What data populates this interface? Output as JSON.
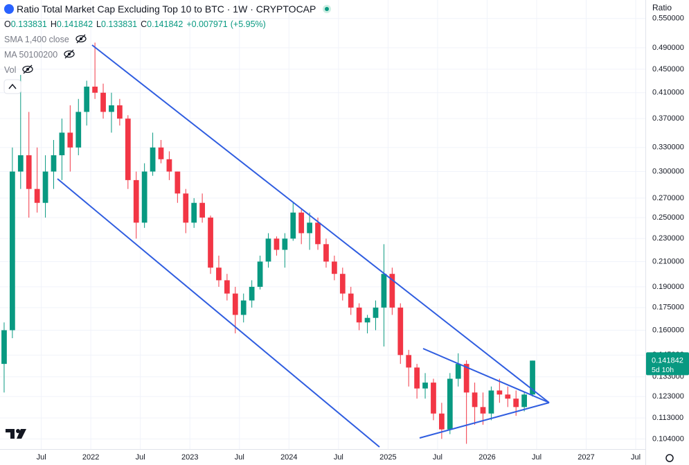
{
  "header": {
    "title": "Ratio Total Market Cap Excluding Top 10 to BTC · 1W · CRYPTOCAP",
    "ohlc": [
      {
        "label": "O",
        "value": "0.133831"
      },
      {
        "label": "H",
        "value": "0.141842"
      },
      {
        "label": "L",
        "value": "0.133831"
      },
      {
        "label": "C",
        "value": "0.141842"
      }
    ],
    "change": "+0.007971",
    "change_pct": "(+5.95%)",
    "indicators": [
      "SMA 1,400 close",
      "MA 50100200",
      "Vol"
    ]
  },
  "axis_header": "Ratio",
  "price_tag": {
    "value": 0.141842,
    "label": "0.141842",
    "countdown": "5d 10h"
  },
  "chart_data": {
    "type": "candlestick",
    "log_scale": true,
    "grid": true,
    "up_color": "#089981",
    "down_color": "#f23645",
    "x": [
      "2021-02",
      "2021-03",
      "2021-04",
      "2021-05",
      "2021-06",
      "2021-07",
      "2021-08",
      "2021-09",
      "2021-10",
      "2021-11",
      "2021-12",
      "2022-01",
      "2022-02",
      "2022-03",
      "2022-04",
      "2022-05",
      "2022-06",
      "2022-07",
      "2022-08",
      "2022-09",
      "2022-10",
      "2022-11",
      "2022-12",
      "2023-01",
      "2023-02",
      "2023-03",
      "2023-04",
      "2023-05",
      "2023-06",
      "2023-07",
      "2023-08",
      "2023-09",
      "2023-10",
      "2023-11",
      "2023-12",
      "2024-01",
      "2024-02",
      "2024-03",
      "2024-04",
      "2024-05",
      "2024-06",
      "2024-07",
      "2024-08",
      "2024-09",
      "2024-10",
      "2024-11",
      "2024-12",
      "2025-01",
      "2025-02",
      "2025-03",
      "2025-04",
      "2025-05",
      "2025-06",
      "2025-07",
      "2025-08",
      "2025-09",
      "2025-10",
      "2025-11",
      "2025-12",
      "2026-01",
      "2026-02",
      "2026-03",
      "2026-04",
      "2026-05",
      "2026-06"
    ],
    "open": [
      0.14,
      0.16,
      0.3,
      0.32,
      0.28,
      0.265,
      0.3,
      0.32,
      0.35,
      0.33,
      0.38,
      0.42,
      0.41,
      0.38,
      0.39,
      0.37,
      0.29,
      0.245,
      0.3,
      0.33,
      0.315,
      0.3,
      0.275,
      0.245,
      0.265,
      0.25,
      0.205,
      0.195,
      0.185,
      0.17,
      0.18,
      0.19,
      0.21,
      0.23,
      0.22,
      0.23,
      0.255,
      0.235,
      0.245,
      0.225,
      0.21,
      0.2,
      0.185,
      0.175,
      0.165,
      0.168,
      0.175,
      0.2,
      0.175,
      0.145,
      0.138,
      0.127,
      0.13,
      0.115,
      0.108,
      0.132,
      0.14,
      0.125,
      0.118,
      0.115,
      0.126,
      0.124,
      0.122,
      0.118,
      0.124
    ],
    "high": [
      0.165,
      0.33,
      0.44,
      0.38,
      0.33,
      0.32,
      0.34,
      0.37,
      0.39,
      0.4,
      0.43,
      0.5,
      0.425,
      0.41,
      0.4,
      0.375,
      0.3,
      0.31,
      0.35,
      0.34,
      0.325,
      0.3,
      0.28,
      0.27,
      0.275,
      0.252,
      0.215,
      0.2,
      0.19,
      0.185,
      0.195,
      0.215,
      0.235,
      0.232,
      0.235,
      0.265,
      0.258,
      0.255,
      0.25,
      0.23,
      0.215,
      0.205,
      0.19,
      0.178,
      0.17,
      0.18,
      0.225,
      0.205,
      0.178,
      0.148,
      0.14,
      0.135,
      0.132,
      0.12,
      0.135,
      0.146,
      0.142,
      0.13,
      0.125,
      0.128,
      0.132,
      0.128,
      0.126,
      0.125,
      0.141842
    ],
    "low": [
      0.125,
      0.155,
      0.28,
      0.25,
      0.255,
      0.25,
      0.28,
      0.29,
      0.3,
      0.32,
      0.36,
      0.4,
      0.37,
      0.35,
      0.36,
      0.28,
      0.23,
      0.24,
      0.295,
      0.31,
      0.29,
      0.265,
      0.235,
      0.24,
      0.245,
      0.2,
      0.19,
      0.18,
      0.158,
      0.165,
      0.175,
      0.188,
      0.205,
      0.215,
      0.205,
      0.228,
      0.225,
      0.22,
      0.22,
      0.205,
      0.195,
      0.18,
      0.17,
      0.16,
      0.158,
      0.16,
      0.15,
      0.17,
      0.14,
      0.128,
      0.122,
      0.122,
      0.112,
      0.104,
      0.106,
      0.128,
      0.102,
      0.11,
      0.11,
      0.112,
      0.12,
      0.118,
      0.114,
      0.116,
      0.123
    ],
    "close": [
      0.16,
      0.3,
      0.32,
      0.28,
      0.265,
      0.3,
      0.32,
      0.35,
      0.33,
      0.38,
      0.42,
      0.41,
      0.38,
      0.39,
      0.37,
      0.29,
      0.245,
      0.3,
      0.33,
      0.315,
      0.3,
      0.275,
      0.245,
      0.265,
      0.25,
      0.205,
      0.195,
      0.185,
      0.17,
      0.18,
      0.19,
      0.21,
      0.23,
      0.22,
      0.23,
      0.255,
      0.235,
      0.245,
      0.225,
      0.21,
      0.2,
      0.185,
      0.175,
      0.165,
      0.168,
      0.175,
      0.2,
      0.175,
      0.145,
      0.138,
      0.127,
      0.13,
      0.115,
      0.108,
      0.132,
      0.14,
      0.125,
      0.118,
      0.115,
      0.126,
      0.124,
      0.122,
      0.118,
      0.124,
      0.141842
    ],
    "xlim": [
      "2021-02",
      "2027-08"
    ],
    "ylim": [
      0.098,
      0.592
    ],
    "xticks": [
      {
        "value": "2021-07",
        "label": "Jul"
      },
      {
        "value": "2022-01",
        "label": "2022"
      },
      {
        "value": "2022-07",
        "label": "Jul"
      },
      {
        "value": "2023-01",
        "label": "2023"
      },
      {
        "value": "2023-07",
        "label": "Jul"
      },
      {
        "value": "2024-01",
        "label": "2024"
      },
      {
        "value": "2024-07",
        "label": "Jul"
      },
      {
        "value": "2025-01",
        "label": "2025"
      },
      {
        "value": "2025-07",
        "label": "Jul"
      },
      {
        "value": "2026-01",
        "label": "2026"
      },
      {
        "value": "2026-07",
        "label": "Jul"
      },
      {
        "value": "2027-01",
        "label": "2027"
      },
      {
        "value": "2027-07",
        "label": "Jul"
      }
    ],
    "yticks": [
      {
        "value": 0.55,
        "label": "0.550000"
      },
      {
        "value": 0.49,
        "label": "0.490000"
      },
      {
        "value": 0.45,
        "label": "0.450000"
      },
      {
        "value": 0.41,
        "label": "0.410000"
      },
      {
        "value": 0.37,
        "label": "0.370000"
      },
      {
        "value": 0.33,
        "label": "0.330000"
      },
      {
        "value": 0.3,
        "label": "0.300000"
      },
      {
        "value": 0.27,
        "label": "0.270000"
      },
      {
        "value": 0.25,
        "label": "0.250000"
      },
      {
        "value": 0.23,
        "label": "0.230000"
      },
      {
        "value": 0.21,
        "label": "0.210000"
      },
      {
        "value": 0.19,
        "label": "0.190000"
      },
      {
        "value": 0.175,
        "label": "0.175000"
      },
      {
        "value": 0.16,
        "label": "0.160000"
      },
      {
        "value": 0.145,
        "label": "0.145000"
      },
      {
        "value": 0.133,
        "label": "0.133000"
      },
      {
        "value": 0.123,
        "label": "0.123000"
      },
      {
        "value": 0.113,
        "label": "0.113000"
      },
      {
        "value": 0.104,
        "label": "0.104000"
      }
    ]
  }
}
